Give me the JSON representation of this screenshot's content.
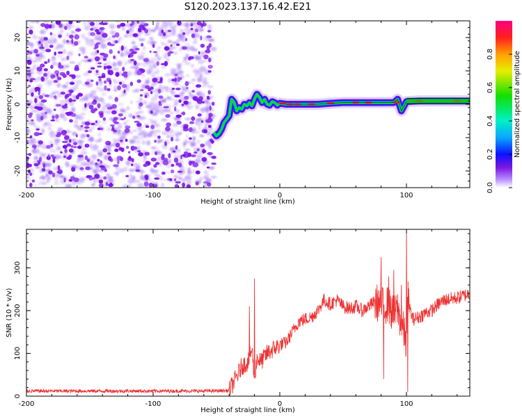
{
  "chart_data": [
    {
      "type": "heatmap",
      "title": "S120.2023.137.16.42.E21",
      "xlabel": "Height of straight line (km)",
      "ylabel": "Frequency (Hz)",
      "xlim": [
        -200,
        150
      ],
      "ylim": [
        -25,
        25
      ],
      "xticks": [
        -200,
        -100,
        0,
        100
      ],
      "yticks": [
        -20,
        -10,
        0,
        10,
        20
      ],
      "xtick_labels": [
        "-200",
        "-100",
        "0",
        "100"
      ],
      "ytick_labels": [
        "-20",
        "-10",
        "0",
        "10",
        "20"
      ],
      "noise_region": [
        -200,
        -52
      ],
      "ridge": {
        "x": [
          -52,
          -50,
          -48,
          -46,
          -44,
          -42,
          -40,
          -38,
          -36,
          -34,
          -32,
          -30,
          -28,
          -26,
          -24,
          -22,
          -20,
          -18,
          -16,
          -14,
          -12,
          -10,
          -8,
          -6,
          -4,
          -2,
          0,
          5,
          10,
          20,
          30,
          40,
          50,
          60,
          70,
          80,
          90,
          93,
          96,
          100,
          110,
          120,
          130,
          140,
          150
        ],
        "y": [
          -8.5,
          -9.5,
          -8.8,
          -7.5,
          -5.5,
          -4.5,
          -3.5,
          1.5,
          0.5,
          -2,
          -1,
          -1.5,
          0,
          -0.5,
          0.5,
          -0.5,
          1.5,
          3,
          2,
          0.5,
          1.5,
          0,
          -0.3,
          0.8,
          0.5,
          -0.3,
          0.3,
          0,
          0,
          0,
          0,
          0.3,
          0.5,
          0.5,
          0.5,
          0.5,
          0.5,
          1.5,
          -2,
          0.8,
          1,
          1,
          1,
          1,
          1
        ]
      },
      "colorbar": {
        "label": "Normalized spectral amplitude",
        "range": [
          0,
          1
        ],
        "ticks": [
          0,
          0.2,
          0.4,
          0.6,
          0.8
        ],
        "tick_labels": [
          "0.0",
          "0.2",
          "0.4",
          "0.6",
          "0.8"
        ]
      }
    },
    {
      "type": "line",
      "xlabel": "Height of straight line (km)",
      "ylabel": "SNR (10 * v/v)",
      "xlim": [
        -200,
        150
      ],
      "ylim": [
        0,
        390
      ],
      "xticks": [
        -200,
        -100,
        0,
        100
      ],
      "yticks": [
        0,
        100,
        200,
        300
      ],
      "xtick_labels": [
        "-200",
        "-100",
        "0",
        "100"
      ],
      "ytick_labels": [
        "0",
        "100",
        "200",
        "300"
      ],
      "color": "#ee3333",
      "series": [
        {
          "x": [
            -200,
            -150,
            -100,
            -60,
            -40,
            -35,
            -30,
            -25,
            -22,
            -20,
            -18,
            -15,
            -10,
            -5,
            0,
            5,
            10,
            15,
            20,
            25,
            30,
            35,
            40,
            45,
            50,
            55,
            60,
            65,
            70,
            75,
            80,
            82,
            85,
            88,
            90,
            93,
            95,
            98,
            100,
            101,
            103,
            105,
            110,
            115,
            120,
            125,
            130,
            140,
            150
          ],
          "y": [
            12,
            12,
            12,
            12,
            13,
            40,
            70,
            80,
            110,
            40,
            90,
            80,
            100,
            110,
            120,
            125,
            150,
            175,
            180,
            185,
            200,
            225,
            215,
            225,
            210,
            205,
            210,
            200,
            210,
            220,
            215,
            210,
            215,
            200,
            190,
            205,
            180,
            150,
            120,
            230,
            200,
            180,
            185,
            195,
            200,
            215,
            225,
            230,
            240
          ]
        }
      ],
      "spikes": [
        {
          "x": -20,
          "y": 275
        },
        {
          "x": -24,
          "y": 210
        },
        {
          "x": 80,
          "y": 325
        },
        {
          "x": 82,
          "y": 40
        },
        {
          "x": 86,
          "y": 280
        },
        {
          "x": 90,
          "y": 295
        },
        {
          "x": 96,
          "y": 260
        },
        {
          "x": 100,
          "y": 390
        },
        {
          "x": 101,
          "y": 10
        }
      ]
    }
  ]
}
